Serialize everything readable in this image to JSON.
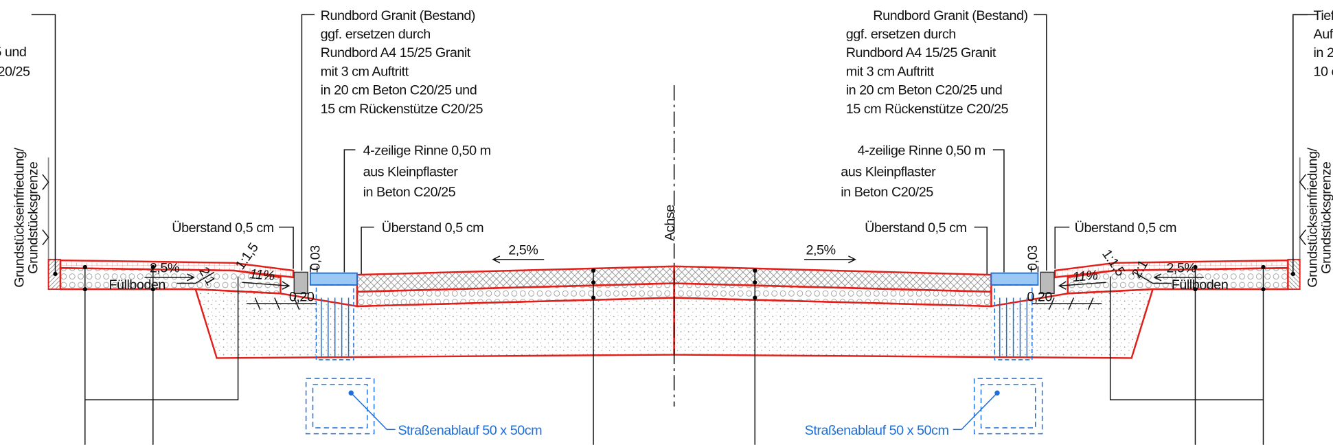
{
  "left_edge": {
    "note_lines": [
      "5 und",
      "C20/25"
    ],
    "boundary_lines": [
      "Grundstückseinfriedung/",
      "Grundstücksgrenze"
    ]
  },
  "left": {
    "curb_note": [
      "Rundbord Granit (Bestand)",
      "ggf. ersetzen durch",
      "Rundbord A4 15/25 Granit",
      "mit 3 cm Auftritt",
      "in 20 cm Beton C20/25 und",
      "15 cm Rückenstütze C20/25"
    ],
    "gutter_note": [
      "4-zeilige Rinne 0,50 m",
      "aus Kleinpflaster",
      "in Beton C20/25"
    ],
    "overhang_outer": "Überstand 0,5 cm",
    "overhang_inner": "Überstand 0,5 cm",
    "slope_walk": "2,5%",
    "slope_curb": "11%",
    "height": "0,03",
    "slope_a": "2:1",
    "slope_b": "1:1,5",
    "fill": "Füllboden",
    "width": "0,20",
    "inlet": "Straßenablauf 50 x 50cm",
    "slope_road": "2,5%"
  },
  "axis": "Achse",
  "right": {
    "curb_note": [
      "Rundbord Granit (Bestand)",
      "ggf. ersetzen durch",
      "Rundbord A4 15/25 Granit",
      "mit 3 cm Auftritt",
      "in 20 cm Beton C20/25 und",
      "15 cm Rückenstütze C20/25"
    ],
    "gutter_note": [
      "4-zeilige Rinne 0,50 m",
      "aus Kleinpflaster",
      "in Beton C20/25"
    ],
    "overhang_outer": "Überstand 0,5 cm",
    "overhang_inner": "Überstand 0,5 cm",
    "slope_walk": "2,5%",
    "slope_curb": "11%",
    "height": "0,03",
    "slope_a": "2:1",
    "slope_b": "1:1,5",
    "fill": "Füllboden",
    "width": "0,20",
    "inlet": "Straßenablauf 50 x 50cm",
    "slope_road": "2,5%"
  },
  "right_edge": {
    "note_lines": [
      "Tief",
      "Auf",
      "in 2",
      "10 c"
    ],
    "boundary_lines": [
      "Grundstückseinfriedung/",
      "Grundstücksgrenze"
    ]
  }
}
